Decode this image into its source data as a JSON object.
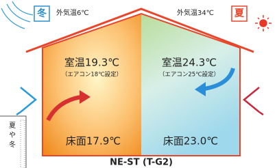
{
  "winter": {
    "label": "冬",
    "outdoor": "外気温6℃",
    "room": "室温19.3℃",
    "setting": "（エアコン18℃設定）",
    "floor": "床面17.9℃"
  },
  "summer": {
    "label": "夏",
    "outdoor": "外気温34℃",
    "room": "室温24.3℃",
    "setting": "（エアコン25℃設定）",
    "floor": "床面23.0℃"
  },
  "model": "NE-ST (T-G2)",
  "side_note": [
    "夏",
    "や",
    "冬"
  ]
}
